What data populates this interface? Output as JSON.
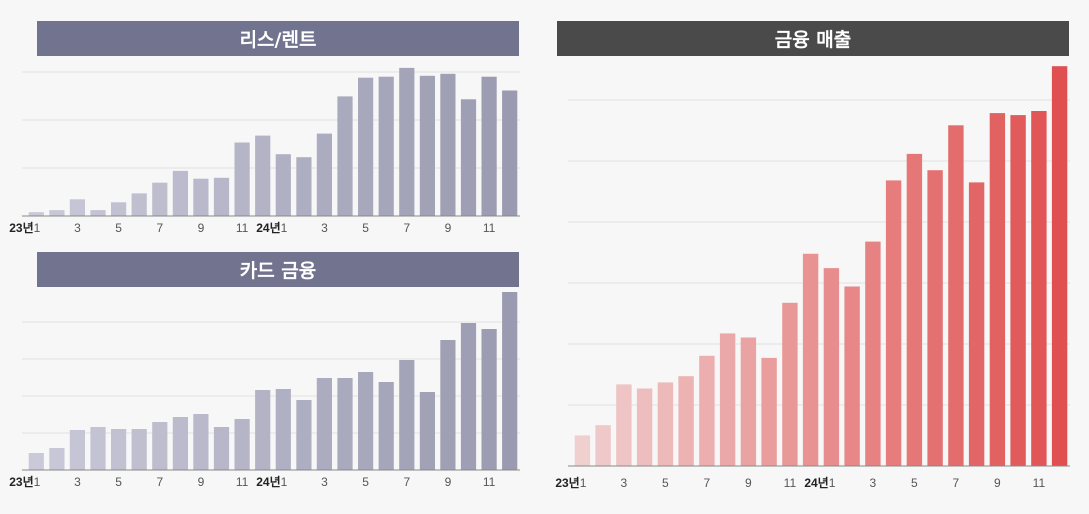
{
  "charts": [
    {
      "title": "리스/렌트",
      "header_color": "#72738f",
      "bar_color_start": "#c9c9d9",
      "bar_color_end": "#9a9ab0"
    },
    {
      "title": "카드 금융",
      "header_color": "#72738f",
      "bar_color_start": "#c9c9d9",
      "bar_color_end": "#9a9ab0"
    },
    {
      "title": "금융 매출",
      "header_color": "#4a4a4a",
      "bar_color_start": "#f0cfcf",
      "bar_color_end": "#e05050"
    }
  ],
  "chart_data": [
    {
      "type": "bar",
      "title": "리스/렌트",
      "categories": [
        "23년1",
        "2",
        "3",
        "4",
        "5",
        "6",
        "7",
        "8",
        "9",
        "10",
        "11",
        "12",
        "24년1",
        "2",
        "3",
        "4",
        "5",
        "6",
        "7",
        "8",
        "9",
        "10",
        "11",
        "12"
      ],
      "tick_labels": [
        "23년1",
        "3",
        "5",
        "7",
        "9",
        "11",
        "24년1",
        "3",
        "5",
        "7",
        "9",
        "11"
      ],
      "values": [
        4,
        6,
        17,
        6,
        14,
        23,
        34,
        46,
        38,
        39,
        75,
        82,
        63,
        60,
        84,
        122,
        141,
        142,
        151,
        143,
        145,
        119,
        142,
        128
      ],
      "ylim": [
        0,
        155
      ],
      "grid": true
    },
    {
      "type": "bar",
      "title": "카드 금융",
      "categories": [
        "23년1",
        "2",
        "3",
        "4",
        "5",
        "6",
        "7",
        "8",
        "9",
        "10",
        "11",
        "12",
        "24년1",
        "2",
        "3",
        "4",
        "5",
        "6",
        "7",
        "8",
        "9",
        "10",
        "11",
        "12"
      ],
      "tick_labels": [
        "23년1",
        "3",
        "5",
        "7",
        "9",
        "11",
        "24년1",
        "3",
        "5",
        "7",
        "9",
        "11"
      ],
      "values": [
        17,
        22,
        40,
        43,
        41,
        41,
        48,
        53,
        56,
        43,
        51,
        80,
        81,
        70,
        92,
        92,
        98,
        88,
        110,
        78,
        130,
        147,
        141,
        178
      ],
      "ylim": [
        0,
        180
      ],
      "grid": true
    },
    {
      "type": "bar",
      "title": "금융 매출",
      "categories": [
        "23년1",
        "2",
        "3",
        "4",
        "5",
        "6",
        "7",
        "8",
        "9",
        "10",
        "11",
        "12",
        "24년1",
        "2",
        "3",
        "4",
        "5",
        "6",
        "7",
        "8",
        "9",
        "10",
        "11",
        "12"
      ],
      "tick_labels": [
        "23년1",
        "3",
        "5",
        "7",
        "9",
        "11",
        "24년1",
        "3",
        "5",
        "7",
        "9",
        "11"
      ],
      "values": [
        15,
        20,
        40,
        38,
        41,
        44,
        54,
        65,
        63,
        53,
        80,
        104,
        97,
        88,
        110,
        140,
        153,
        145,
        167,
        139,
        173,
        172,
        174,
        196
      ],
      "ylim": [
        0,
        200
      ],
      "grid": true
    }
  ]
}
